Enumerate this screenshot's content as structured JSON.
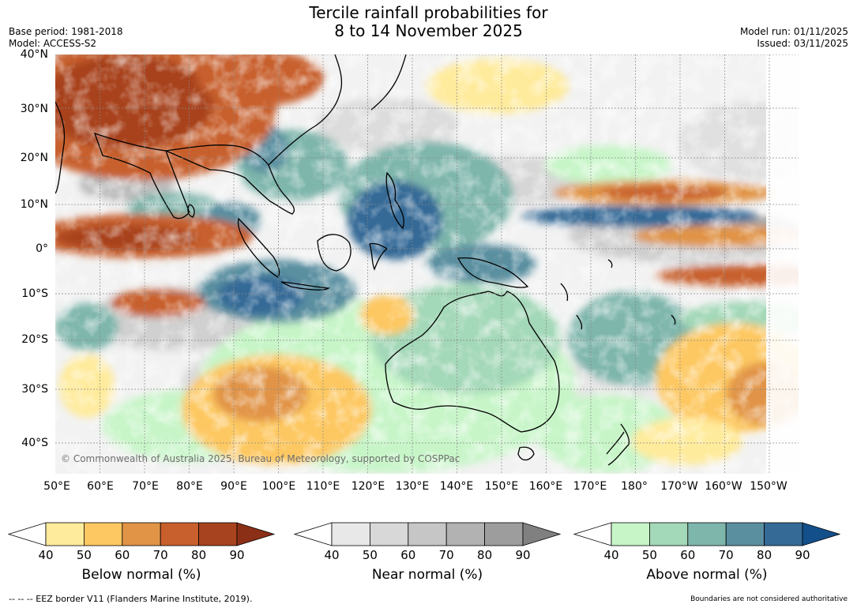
{
  "title_line1": "Tercile rainfall probabilities for",
  "title_line2": "8 to 14 November 2025",
  "base_period": "Base period: 1981-2018",
  "model": "Model: ACCESS-S2",
  "model_run": "Model run: 01/11/2025",
  "issued": "Issued: 03/11/2025",
  "lat_labels": [
    "40°N",
    "30°N",
    "20°N",
    "10°N",
    "0°",
    "10°S",
    "20°S",
    "30°S",
    "40°S"
  ],
  "lon_labels": [
    "50°E",
    "60°E",
    "70°E",
    "80°E",
    "90°E",
    "100°E",
    "110°E",
    "120°E",
    "130°E",
    "140°E",
    "150°E",
    "160°E",
    "170°E",
    "180°",
    "170°W",
    "160°W",
    "150°W"
  ],
  "copyright": "© Commonwealth of Australia 2025, Bureau of Meteorology, supported by COSPPac",
  "colorbars": [
    {
      "title": "Below normal (%)",
      "ticks": [
        "40",
        "50",
        "60",
        "70",
        "80",
        "90"
      ],
      "colors": [
        "#ffffff",
        "#ffeb9c",
        "#fdc862",
        "#e19446",
        "#c8602d",
        "#a8431f",
        "#8b2f16"
      ]
    },
    {
      "title": "Near normal (%)",
      "ticks": [
        "40",
        "50",
        "60",
        "70",
        "80",
        "90"
      ],
      "colors": [
        "#ffffff",
        "#e8e8e8",
        "#d8d8d8",
        "#c6c6c6",
        "#b2b2b2",
        "#9d9d9d",
        "#808080"
      ]
    },
    {
      "title": "Above normal (%)",
      "ticks": [
        "40",
        "50",
        "60",
        "70",
        "80",
        "90"
      ],
      "colors": [
        "#ffffff",
        "#c7f5c8",
        "#a3d8b8",
        "#7eb6ac",
        "#5a8fa0",
        "#356a97",
        "#134f8a"
      ]
    }
  ],
  "eez_note": "--  --  -- EEZ border V11 (Flanders Marine Institute, 2019).",
  "boundary_note": "Boundaries are not considered authoritative"
}
